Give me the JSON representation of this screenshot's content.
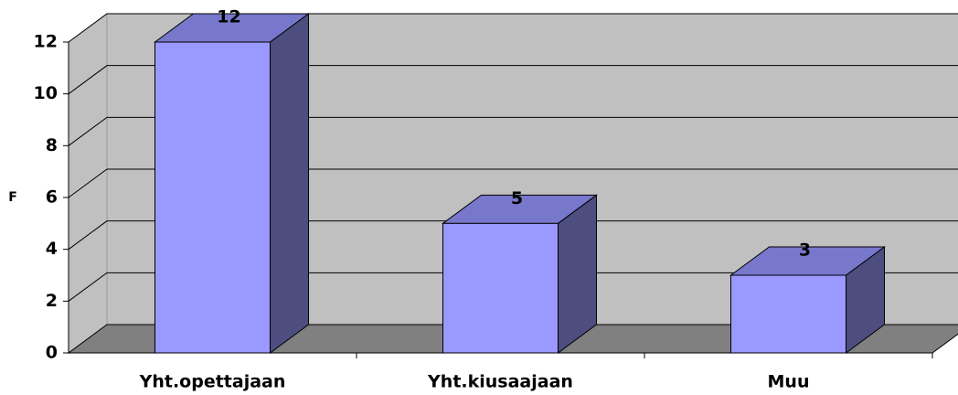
{
  "chart_data": {
    "type": "bar3d",
    "y_axis_label": "F",
    "categories": [
      "Yht.opettajaan",
      "Yht.kiusaajaan",
      "Muu"
    ],
    "values": [
      12,
      5,
      3
    ],
    "color": "#9999ff",
    "ylim": [
      0,
      12
    ],
    "yticks": [
      0,
      2,
      4,
      6,
      8,
      10,
      12
    ],
    "grid": true
  }
}
